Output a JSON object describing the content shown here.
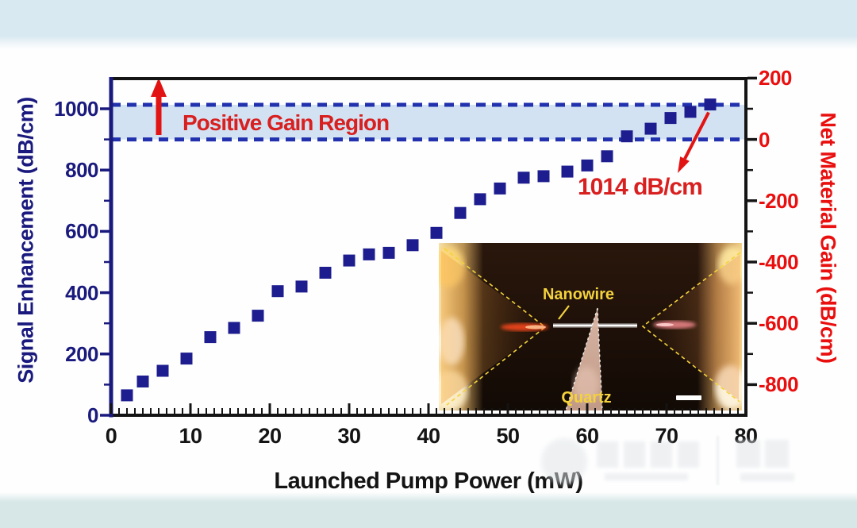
{
  "figure": {
    "band_label": "Positive Gain Region",
    "inset": {
      "nanowire_label": "Nanowire",
      "quartz_label": "Quartz",
      "scale_bar": "scale-bar"
    }
  },
  "chart_data": {
    "type": "scatter",
    "title": "",
    "xlabel": "Launched Pump Power (mW)",
    "xlim": [
      0,
      80
    ],
    "x_ticks": [
      0,
      10,
      20,
      30,
      40,
      50,
      60,
      70,
      80
    ],
    "x_minor_step": 1,
    "left_axis": {
      "label": "Signal Enhancement (dB/cm)",
      "ticks": [
        0,
        200,
        400,
        600,
        800,
        1000
      ],
      "minor_ticks": [
        100,
        300,
        500,
        700,
        900
      ],
      "lim": [
        0,
        1104
      ],
      "color": "#1a1a7e"
    },
    "right_axis": {
      "label": "Net Material Gain (dB/cm)",
      "ticks": [
        200,
        0,
        -200,
        -400,
        -600,
        -800
      ],
      "minor_ticks": [
        100,
        -100,
        -300,
        -500,
        -700
      ],
      "offset_from_left": -900,
      "label_color": "#ea0f0f"
    },
    "grid": false,
    "legend": false,
    "series": [
      {
        "name": "Signal Enhancement",
        "marker": "square",
        "color": "#1d1d8f",
        "points": [
          [
            2,
            65
          ],
          [
            4,
            110
          ],
          [
            6.5,
            145
          ],
          [
            9.5,
            185
          ],
          [
            12.5,
            255
          ],
          [
            15.5,
            285
          ],
          [
            18.5,
            325
          ],
          [
            21,
            405
          ],
          [
            24,
            420
          ],
          [
            27,
            465
          ],
          [
            30,
            505
          ],
          [
            32.5,
            525
          ],
          [
            35,
            530
          ],
          [
            38,
            555
          ],
          [
            41,
            595
          ],
          [
            44,
            660
          ],
          [
            46.5,
            705
          ],
          [
            49,
            740
          ],
          [
            52,
            775
          ],
          [
            54.5,
            780
          ],
          [
            57.5,
            795
          ],
          [
            60,
            815
          ],
          [
            62.5,
            845
          ],
          [
            65,
            910
          ],
          [
            68,
            935
          ],
          [
            70.5,
            970
          ],
          [
            73,
            990
          ],
          [
            75.5,
            1014
          ]
        ]
      }
    ],
    "positive_gain_band": {
      "from": 900,
      "to": 1013,
      "fill": "rgba(173,203,231,0.55)",
      "line_color": "#2231ad"
    },
    "annotation": {
      "text": "1014 dB/cm",
      "point": [
        75.5,
        1014
      ],
      "color": "#d92020"
    }
  },
  "colors": {
    "accent_red": "#e21313",
    "axis_navy": "#1a1a7e",
    "axis_black": "#141414",
    "page_strip_top": "#d9e9f1",
    "page_strip_bottom": "#d7e7e8"
  }
}
